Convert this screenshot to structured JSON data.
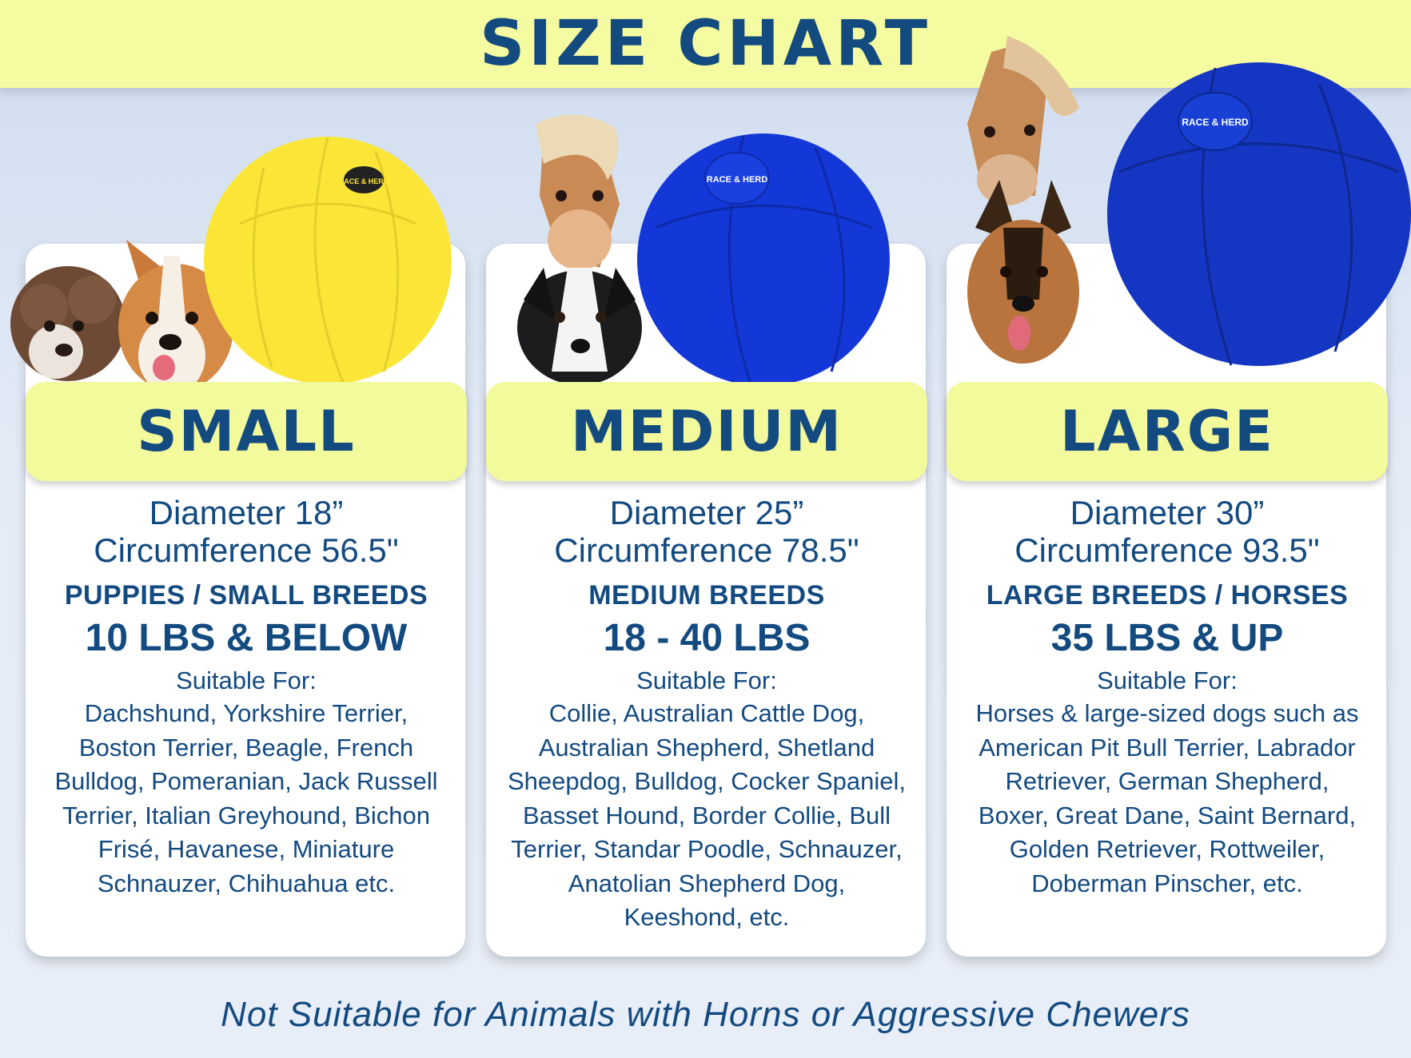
{
  "title": "SIZE CHART",
  "cards": [
    {
      "size": "SMALL",
      "diameter": "Diameter 18”",
      "circumference": "Circumference 56.5\"",
      "breeds_heading": "PUPPIES / SMALL BREEDS",
      "weight": "10 LBS & BELOW",
      "suitable_label": "Suitable For:",
      "suitable_list": "Dachshund, Yorkshire Terrier, Boston Terrier, Beagle, French Bulldog, Pomeranian, Jack Russell Terrier, Italian Greyhound, Bichon Frisé, Havanese, Miniature Schnauzer, Chihuahua etc.",
      "ball_color": "#fbe638"
    },
    {
      "size": "MEDIUM",
      "diameter": "Diameter 25”",
      "circumference": "Circumference 78.5\"",
      "breeds_heading": "MEDIUM BREEDS",
      "weight": "18 - 40 LBS",
      "suitable_label": "Suitable For:",
      "suitable_list": "Collie, Australian Cattle Dog, Australian Shepherd, Shetland Sheepdog, Bulldog, Cocker Spaniel, Basset Hound, Border Collie, Bull Terrier, Standar Poodle, Schnauzer, Anatolian Shepherd Dog, Keeshond, etc.",
      "ball_color": "#1437d8"
    },
    {
      "size": "LARGE",
      "diameter": "Diameter 30”",
      "circumference": "Circumference 93.5\"",
      "breeds_heading": "LARGE BREEDS / HORSES",
      "weight": "35 LBS & UP",
      "suitable_label": "Suitable For:",
      "suitable_list": "Horses & large-sized dogs such as American Pit Bull Terrier, Labrador Retriever, German Shepherd, Boxer, Great Dane, Saint Bernard, Golden Retriever, Rottweiler, Doberman Pinscher, etc.",
      "ball_color": "#1436c2"
    }
  ],
  "ball_logo": "RACE & HERD",
  "footer": "Not Suitable for Animals with Horns or Aggressive Chewers",
  "colors": {
    "accent_text": "#134a80",
    "banner": "#f5fba0",
    "label_bar": "#f3fa9c"
  }
}
